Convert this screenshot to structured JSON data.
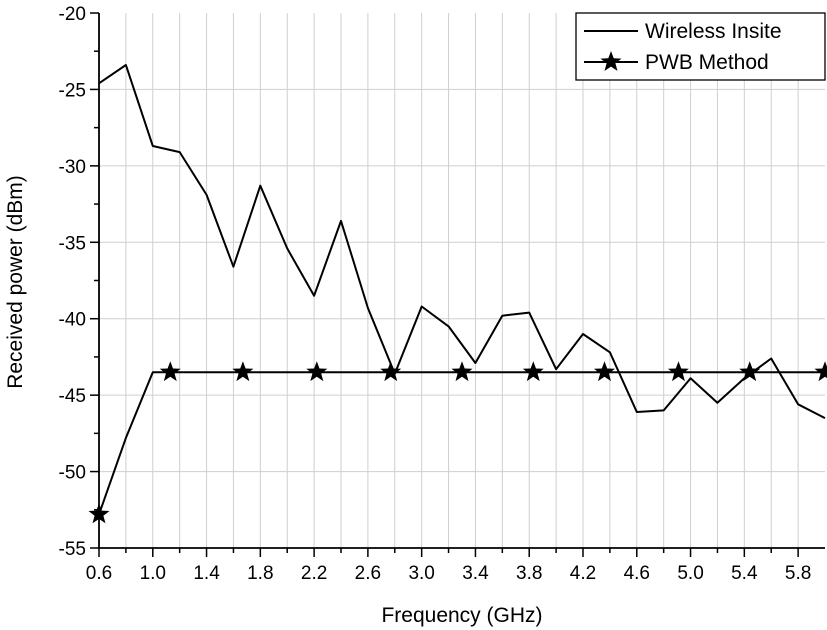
{
  "chart_data": {
    "type": "line",
    "xlabel": "Frequency (GHz)",
    "ylabel": "Received power (dBm)",
    "xlim": [
      0.6,
      6.0
    ],
    "ylim": [
      -55,
      -20
    ],
    "x_ticks": [
      "0.6",
      "1.0",
      "1.4",
      "1.8",
      "2.2",
      "2.6",
      "3.0",
      "3.4",
      "3.8",
      "4.2",
      "4.6",
      "5.0",
      "5.4",
      "5.8"
    ],
    "y_ticks": [
      "-20",
      "-25",
      "-30",
      "-35",
      "-40",
      "-45",
      "-50",
      "-55"
    ],
    "grid": true,
    "legend_position": "top-right",
    "series": [
      {
        "name": "Wireless Insite",
        "marker": "none",
        "x": [
          0.6,
          0.8,
          1.0,
          1.2,
          1.4,
          1.6,
          1.8,
          2.0,
          2.2,
          2.4,
          2.6,
          2.8,
          3.0,
          3.2,
          3.4,
          3.6,
          3.8,
          4.0,
          4.2,
          4.4,
          4.6,
          4.8,
          5.0,
          5.2,
          5.4,
          5.6,
          5.8,
          6.0
        ],
        "y": [
          -24.6,
          -23.4,
          -28.7,
          -29.1,
          -31.9,
          -36.6,
          -31.3,
          -35.4,
          -38.5,
          -33.6,
          -39.3,
          -43.6,
          -39.2,
          -40.5,
          -42.9,
          -39.8,
          -39.6,
          -43.3,
          -41.0,
          -42.2,
          -46.1,
          -46.0,
          -43.9,
          -45.5,
          -43.9,
          -42.6,
          -45.6,
          -46.5
        ]
      },
      {
        "name": "PWB Method",
        "marker": "star",
        "x": [
          0.6,
          0.8,
          1.0,
          1.13,
          1.67,
          2.22,
          2.77,
          3.3,
          3.83,
          4.36,
          4.91,
          5.44,
          6.0
        ],
        "y": [
          -52.8,
          -47.8,
          -43.5,
          -43.5,
          -43.5,
          -43.5,
          -43.5,
          -43.5,
          -43.5,
          -43.5,
          -43.5,
          -43.5,
          -43.5
        ],
        "marker_x": [
          0.6,
          1.13,
          1.67,
          2.22,
          2.77,
          3.3,
          3.83,
          4.36,
          4.91,
          5.44,
          6.0
        ],
        "marker_y": [
          -52.8,
          -43.5,
          -43.5,
          -43.5,
          -43.5,
          -43.5,
          -43.5,
          -43.5,
          -43.5,
          -43.5,
          -43.5
        ]
      }
    ]
  }
}
